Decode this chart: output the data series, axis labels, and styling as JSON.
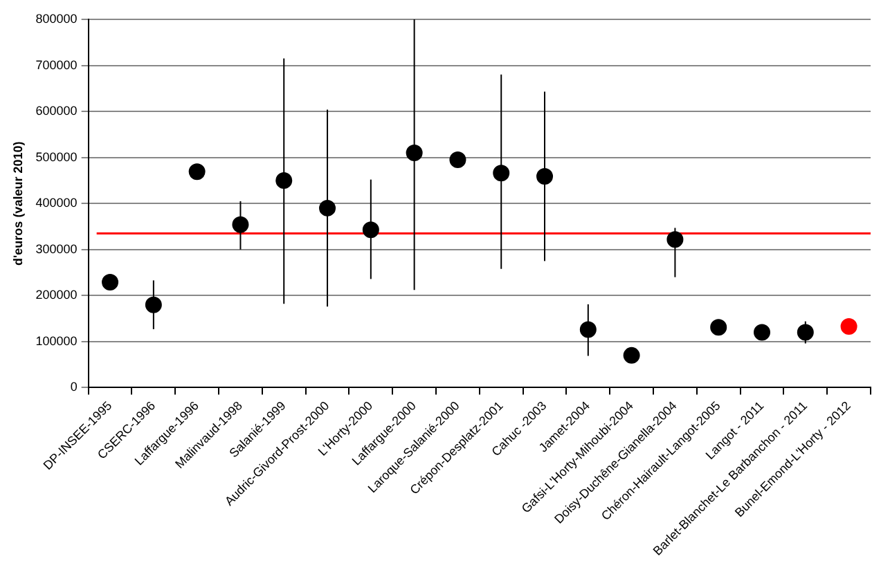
{
  "chart_data": {
    "type": "scatter",
    "ylabel": "d'euros (valeur 2010)",
    "categories": [
      "DP-INSEE-1995",
      "CSERC-1996",
      "Laffargue-1996",
      "Malinvaud-1998",
      "Salanié-1999",
      "Audric-Givord-Prost-2000",
      "L'Horty-2000",
      "Laffargue-2000",
      "Laroque-Salanié-2000",
      "Crépon-Desplatz-2001",
      "Cahuc -2003",
      "Jamet-2004",
      "Gafsi-L'Horty-Mihoubi-2004",
      "Doisy-Duchêne-Gianella-2004",
      "Chéron-Hairault-Langot-2005",
      "Langot - 2011",
      "Barlet-Blanchet-Le Barbanchon - 2011",
      "Bunel-Emond-L'Horty - 2012"
    ],
    "values": [
      229000,
      180000,
      469000,
      354000,
      450000,
      390000,
      343000,
      510000,
      495000,
      466000,
      459000,
      126000,
      70000,
      322000,
      131000,
      120000,
      120000,
      133000
    ],
    "colors": [
      "#000000",
      "#000000",
      "#000000",
      "#000000",
      "#000000",
      "#000000",
      "#000000",
      "#000000",
      "#000000",
      "#000000",
      "#000000",
      "#000000",
      "#000000",
      "#000000",
      "#000000",
      "#000000",
      "#000000",
      "#ff0000"
    ],
    "errors": [
      null,
      [
        127000,
        233000
      ],
      null,
      [
        300000,
        405000
      ],
      [
        182000,
        715000
      ],
      [
        176000,
        604000
      ],
      [
        236000,
        452000
      ],
      [
        212000,
        800000
      ],
      null,
      [
        258000,
        680000
      ],
      [
        275000,
        643000
      ],
      [
        69000,
        181000
      ],
      null,
      [
        240000,
        347000
      ],
      null,
      null,
      [
        96000,
        144000
      ],
      null
    ],
    "ref_lines": [
      {
        "axis": "y",
        "value": 335000,
        "color": "#ff0000"
      }
    ],
    "ylim": [
      0,
      800000
    ],
    "yticks": [
      0,
      100000,
      200000,
      300000,
      400000,
      500000,
      600000,
      700000,
      800000
    ],
    "grid": "y",
    "marker": "circle"
  }
}
